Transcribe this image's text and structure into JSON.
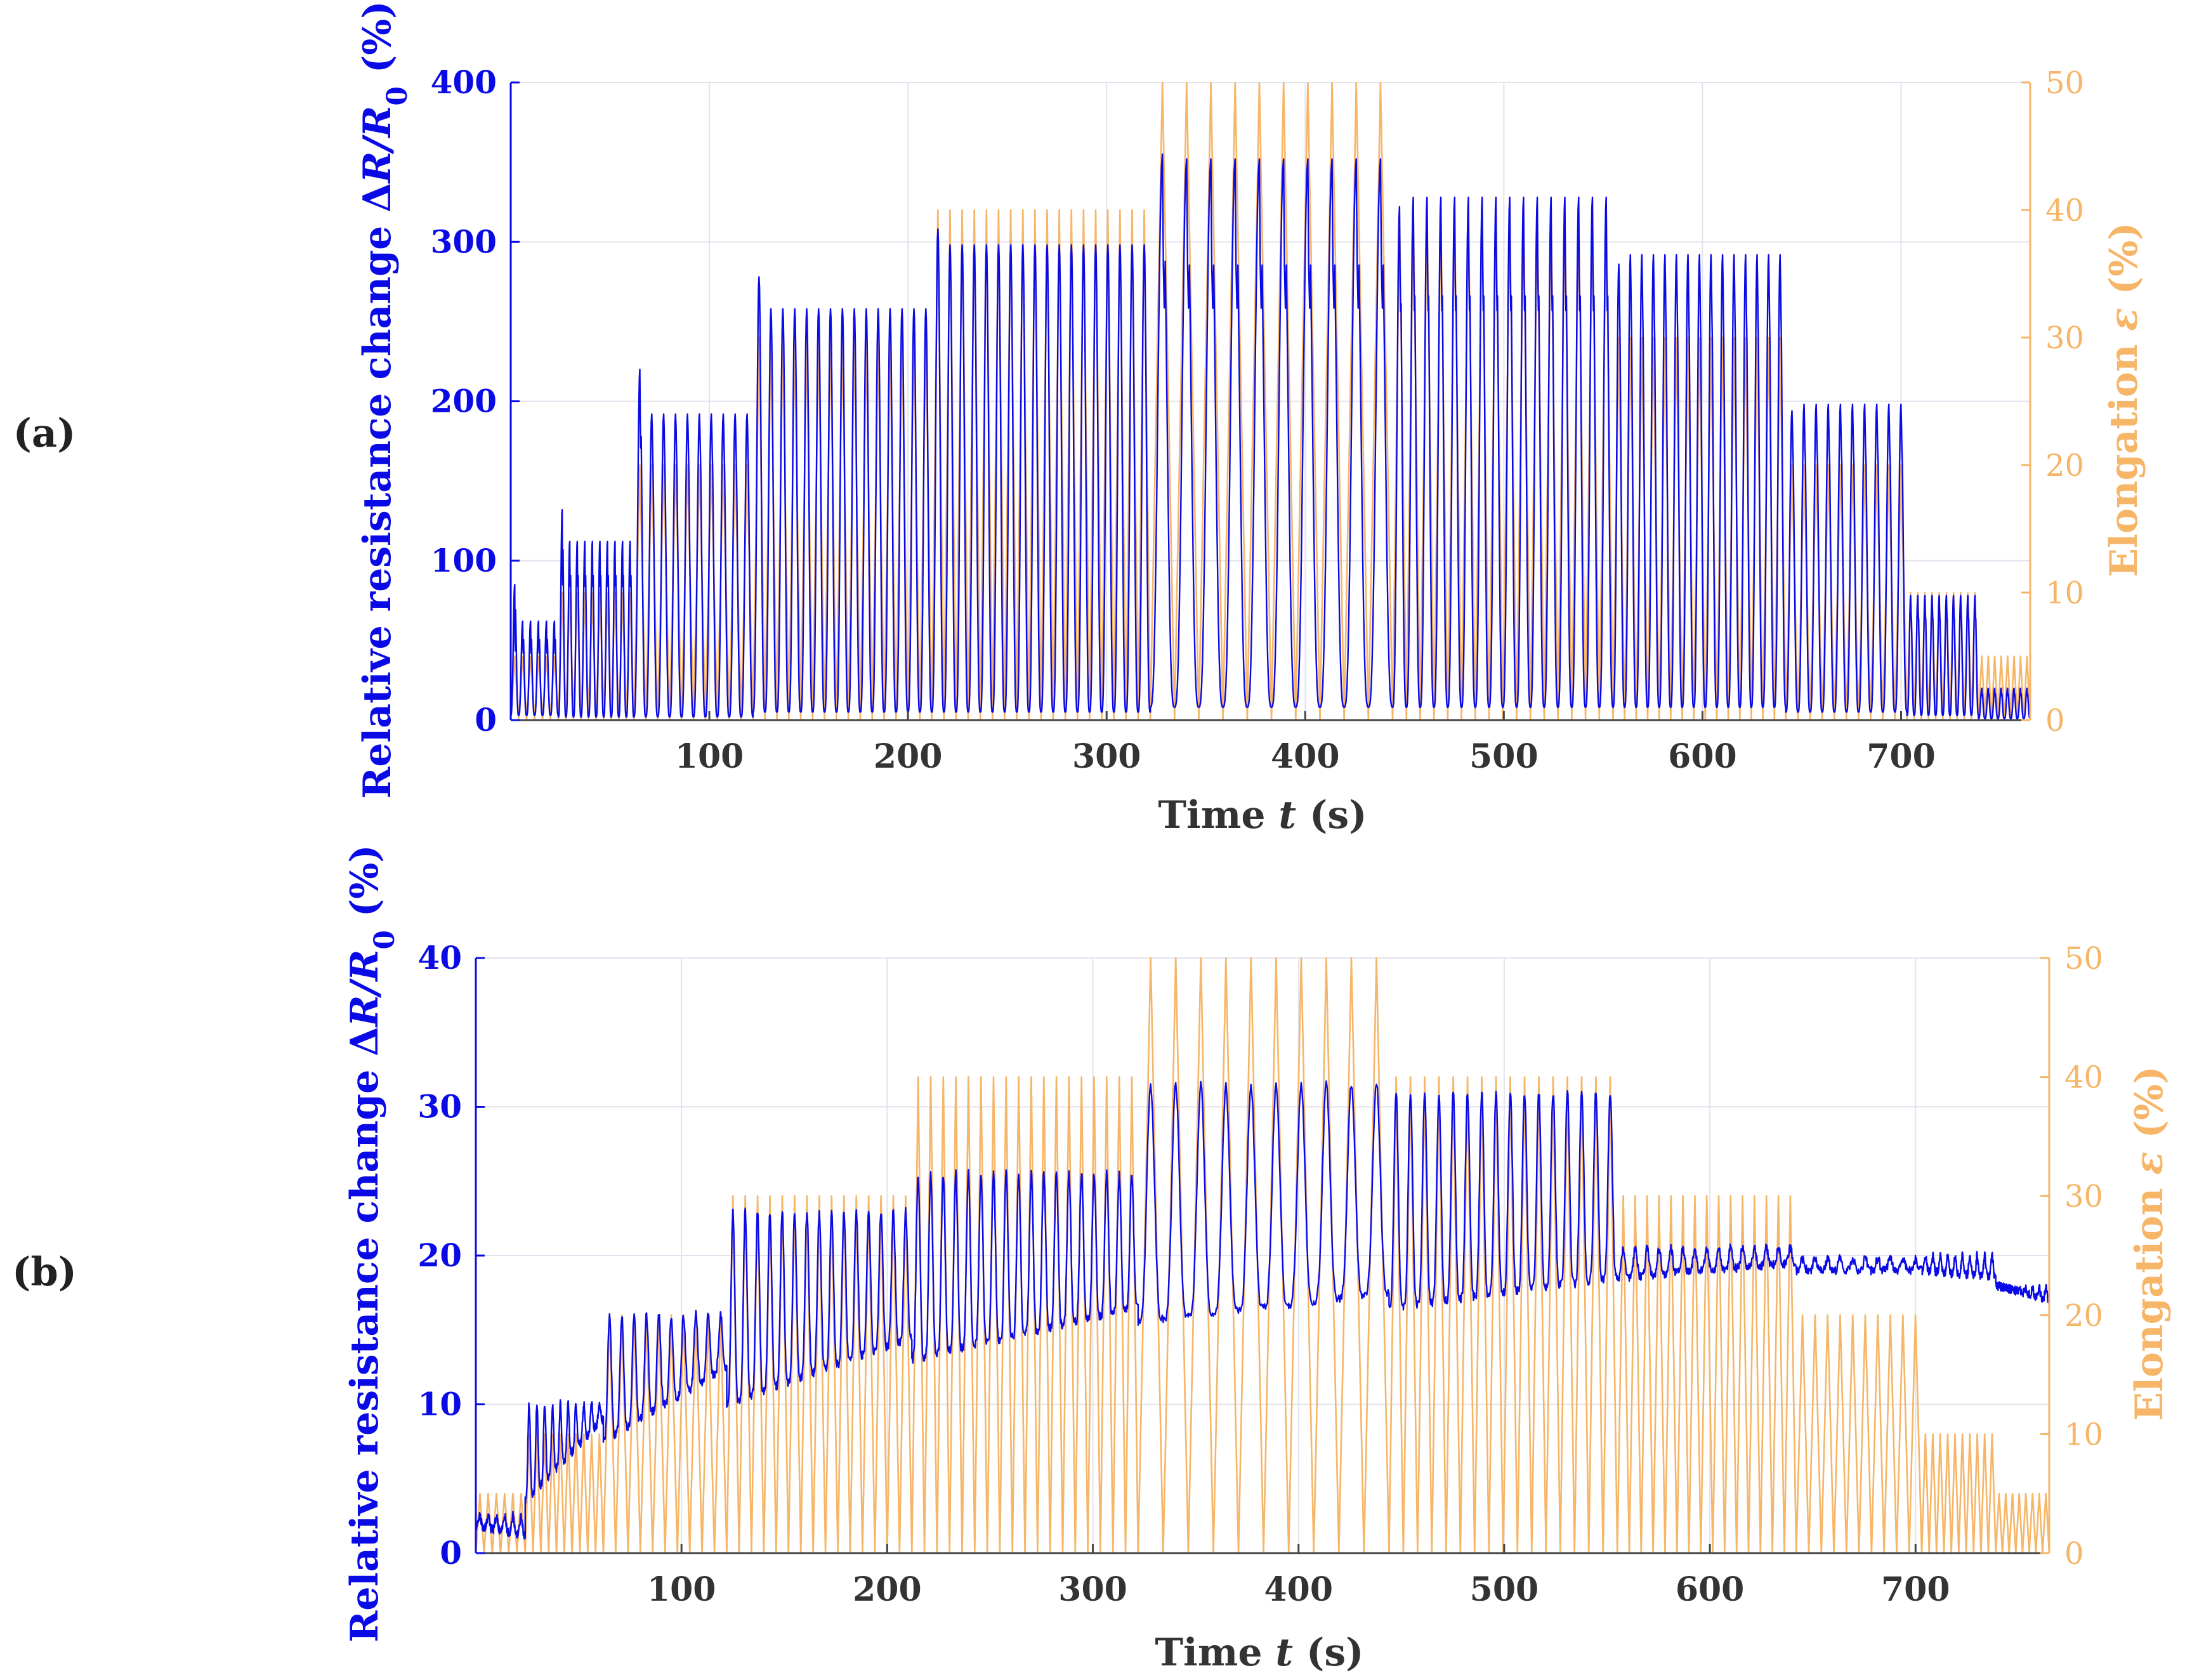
{
  "colors": {
    "resistance": "#0a0ae6",
    "elongation": "#f6b567",
    "grid": "#e3e3ef",
    "axis": "#444444"
  },
  "chart_data": [
    {
      "type": "line",
      "panel_label": "(a)",
      "xlabel": "Time t (s)",
      "xlabel_parts": {
        "prefix": "Time ",
        "var": "t",
        "suffix": " (s)"
      },
      "ylabel_left": "Relative resistance change ΔR/R0 (%)",
      "ylabel_left_parts": {
        "prefix": "Relative resistance change ",
        "delta": "Δ",
        "var": "R/R",
        "sub": "0",
        "suffix": " (%)"
      },
      "ylabel_right": "Elongation ε (%)",
      "ylabel_right_parts": {
        "prefix": "Elongation ",
        "var": "ε",
        "suffix": " (%)"
      },
      "xlim": [
        0,
        765
      ],
      "ylim_left": [
        0,
        400
      ],
      "ylim_right": [
        0,
        50
      ],
      "xticks": [
        100,
        200,
        300,
        400,
        500,
        600,
        700
      ],
      "yticks_left": [
        0,
        100,
        200,
        300,
        400
      ],
      "yticks_right": [
        0,
        10,
        20,
        30,
        40,
        50
      ],
      "grid": true,
      "series": [
        {
          "name": "Relative resistance change ΔR/R0",
          "axis": "left",
          "color": "#0a0ae6",
          "pattern": "cyclic",
          "blocks": [
            {
              "t_start": 0,
              "t_end": 24,
              "cycles": 6,
              "peak": 62,
              "first_peak": 85,
              "base": 3,
              "shoulder": 38
            },
            {
              "t_start": 24,
              "t_end": 62,
              "cycles": 10,
              "peak": 112,
              "first_peak": 132,
              "base": 2,
              "shoulder": 78
            },
            {
              "t_start": 62,
              "t_end": 122,
              "cycles": 10,
              "peak": 192,
              "first_peak": 220,
              "base": 2,
              "shoulder": 160
            },
            {
              "t_start": 122,
              "t_end": 212,
              "cycles": 15,
              "peak": 258,
              "first_peak": 278,
              "base": 5,
              "shoulder": 240
            },
            {
              "t_start": 212,
              "t_end": 322,
              "cycles": 18,
              "peak": 298,
              "first_peak": 308,
              "base": 5,
              "shoulder": 280
            },
            {
              "t_start": 322,
              "t_end": 444,
              "cycles": 10,
              "peak": 352,
              "first_peak": 355,
              "base": 8,
              "shoulder": 240
            },
            {
              "t_start": 444,
              "t_end": 555,
              "cycles": 16,
              "peak": 328,
              "first_peak": 322,
              "base": 8,
              "shoulder": 240
            },
            {
              "t_start": 555,
              "t_end": 642,
              "cycles": 15,
              "peak": 292,
              "first_peak": 286,
              "base": 8,
              "shoulder": 240
            },
            {
              "t_start": 642,
              "t_end": 703,
              "cycles": 10,
              "peak": 198,
              "first_peak": 194,
              "base": 5,
              "shoulder": 160
            },
            {
              "t_start": 703,
              "t_end": 739,
              "cycles": 10,
              "peak": 78,
              "first_peak": 78,
              "base": 3,
              "shoulder": 60
            },
            {
              "t_start": 739,
              "t_end": 765,
              "cycles": 8,
              "peak": 20,
              "first_peak": 20,
              "base": 1,
              "shoulder": 14
            }
          ]
        },
        {
          "name": "Elongation ε",
          "axis": "right",
          "color": "#f6b567",
          "pattern": "triangular",
          "blocks": [
            {
              "t_start": 0,
              "t_end": 24,
              "cycles": 6,
              "max": 5
            },
            {
              "t_start": 24,
              "t_end": 62,
              "cycles": 10,
              "max": 10
            },
            {
              "t_start": 62,
              "t_end": 122,
              "cycles": 10,
              "max": 20
            },
            {
              "t_start": 122,
              "t_end": 212,
              "cycles": 15,
              "max": 30
            },
            {
              "t_start": 212,
              "t_end": 322,
              "cycles": 18,
              "max": 40
            },
            {
              "t_start": 322,
              "t_end": 444,
              "cycles": 10,
              "max": 50
            },
            {
              "t_start": 444,
              "t_end": 555,
              "cycles": 16,
              "max": 40
            },
            {
              "t_start": 555,
              "t_end": 642,
              "cycles": 15,
              "max": 30
            },
            {
              "t_start": 642,
              "t_end": 703,
              "cycles": 10,
              "max": 20
            },
            {
              "t_start": 703,
              "t_end": 739,
              "cycles": 10,
              "max": 10
            },
            {
              "t_start": 739,
              "t_end": 765,
              "cycles": 8,
              "max": 5
            }
          ]
        }
      ]
    },
    {
      "type": "line",
      "panel_label": "(b)",
      "xlabel": "Time t (s)",
      "xlabel_parts": {
        "prefix": "Time ",
        "var": "t",
        "suffix": " (s)"
      },
      "ylabel_left": "Relative resistance change ΔR/R0 (%)",
      "ylabel_left_parts": {
        "prefix": "Relative resistance change ",
        "delta": "Δ",
        "var": "R/R",
        "sub": "0",
        "suffix": " (%)"
      },
      "ylabel_right": "Elongation ε (%)",
      "ylabel_right_parts": {
        "prefix": "Elongation ",
        "var": "ε",
        "suffix": " (%)"
      },
      "xlim": [
        0,
        765
      ],
      "ylim_left": [
        0,
        40
      ],
      "ylim_right": [
        0,
        50
      ],
      "xticks": [
        100,
        200,
        300,
        400,
        500,
        600,
        700
      ],
      "yticks_left": [
        0,
        10,
        20,
        30,
        40
      ],
      "yticks_right": [
        0,
        10,
        20,
        30,
        40,
        50
      ],
      "grid": true,
      "series": [
        {
          "name": "Relative resistance change ΔR/R0",
          "axis": "left",
          "color": "#0a0ae6",
          "pattern": "drift",
          "blocks": [
            {
              "t_start": 0,
              "t_end": 24,
              "cycles": 6,
              "base_start": 1.8,
              "base_end": 1.2,
              "peak": 2.5
            },
            {
              "t_start": 24,
              "t_end": 62,
              "cycles": 10,
              "base_start": 3.5,
              "base_end": 9.0,
              "peak": 10.0
            },
            {
              "t_start": 62,
              "t_end": 122,
              "cycles": 10,
              "base_start": 7.5,
              "base_end": 12.5,
              "peak": 16.0
            },
            {
              "t_start": 122,
              "t_end": 212,
              "cycles": 15,
              "base_start": 10.0,
              "base_end": 14.5,
              "peak": 23.0
            },
            {
              "t_start": 212,
              "t_end": 322,
              "cycles": 18,
              "base_start": 13.0,
              "base_end": 16.5,
              "peak": 25.5
            },
            {
              "t_start": 322,
              "t_end": 444,
              "cycles": 10,
              "base_start": 15.5,
              "base_end": 17.5,
              "peak": 31.5
            },
            {
              "t_start": 444,
              "t_end": 555,
              "cycles": 16,
              "base_start": 16.5,
              "base_end": 18.5,
              "peak": 31.0
            },
            {
              "t_start": 555,
              "t_end": 642,
              "cycles": 15,
              "base_start": 18.5,
              "base_end": 19.5,
              "peak": 20.5
            },
            {
              "t_start": 642,
              "t_end": 703,
              "cycles": 10,
              "base_start": 19.0,
              "base_end": 19.0,
              "peak": 19.8
            },
            {
              "t_start": 703,
              "t_end": 739,
              "cycles": 10,
              "base_start": 19.0,
              "base_end": 18.5,
              "peak": 20.0
            },
            {
              "t_start": 739,
              "t_end": 765,
              "cycles": 8,
              "base_start": 18.0,
              "base_end": 17.0,
              "peak": 17.8
            }
          ]
        },
        {
          "name": "Elongation ε",
          "axis": "right",
          "color": "#f6b567",
          "pattern": "triangular",
          "blocks": [
            {
              "t_start": 0,
              "t_end": 24,
              "cycles": 6,
              "max": 5
            },
            {
              "t_start": 24,
              "t_end": 62,
              "cycles": 10,
              "max": 10
            },
            {
              "t_start": 62,
              "t_end": 122,
              "cycles": 10,
              "max": 20
            },
            {
              "t_start": 122,
              "t_end": 212,
              "cycles": 15,
              "max": 30
            },
            {
              "t_start": 212,
              "t_end": 322,
              "cycles": 18,
              "max": 40
            },
            {
              "t_start": 322,
              "t_end": 444,
              "cycles": 10,
              "max": 50
            },
            {
              "t_start": 444,
              "t_end": 555,
              "cycles": 16,
              "max": 40
            },
            {
              "t_start": 555,
              "t_end": 642,
              "cycles": 15,
              "max": 30
            },
            {
              "t_start": 642,
              "t_end": 703,
              "cycles": 10,
              "max": 20
            },
            {
              "t_start": 703,
              "t_end": 739,
              "cycles": 10,
              "max": 10
            },
            {
              "t_start": 739,
              "t_end": 765,
              "cycles": 8,
              "max": 5
            }
          ]
        }
      ]
    }
  ]
}
